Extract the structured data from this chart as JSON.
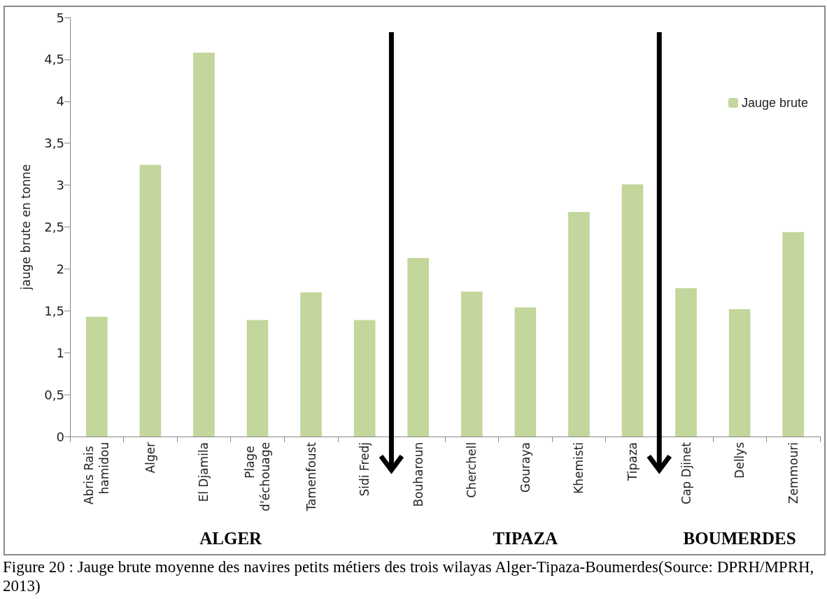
{
  "chart_data": {
    "type": "bar",
    "ylabel": "jauge brute en tonne",
    "categories": [
      "Abris Rais hamidou",
      "Alger",
      "El Djamila",
      "Plage d'échouage",
      "Tamenfoust",
      "Sidi Fredj",
      "Bouharoun",
      "Cherchell",
      "Gouraya",
      "Khemisti",
      "Tipaza",
      "Cap Djinet",
      "Dellys",
      "Zemmouri"
    ],
    "series": [
      {
        "name": "Jauge brute",
        "color": "#c3d69b",
        "values": [
          1.43,
          3.24,
          4.58,
          1.39,
          1.72,
          1.39,
          2.13,
          1.73,
          1.54,
          2.68,
          3.01,
          1.77,
          1.52,
          2.44
        ]
      }
    ],
    "ylim": [
      0,
      5
    ],
    "yticks": [
      0,
      {
        "value": 0.5,
        "label": "0,5"
      },
      1,
      {
        "value": 1.5,
        "label": "1,5"
      },
      2,
      {
        "value": 2.5,
        "label": "2,5"
      },
      3,
      {
        "value": 3.5,
        "label": "3,5"
      },
      4,
      {
        "value": 4.5,
        "label": "4,5"
      },
      5
    ],
    "grid": false,
    "legend": "top right",
    "annotations": [
      "ALGER",
      "TIPAZA",
      "BOUMERDES",
      "Figure 20 : Jauge brute moyenne des navires petits métiers des trois wilayas Alger-Tipaza-Boumerdes(Source: DPRH/MPRH, 2013)"
    ]
  }
}
